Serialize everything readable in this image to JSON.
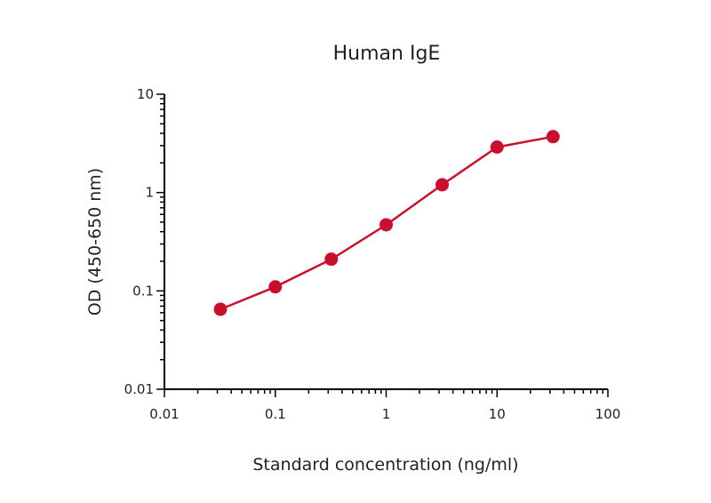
{
  "chart_data": {
    "type": "line",
    "title": "Human IgE",
    "xlabel": "Standard concentration (ng/ml)",
    "ylabel": "OD (450-650 nm)",
    "x_scale": "log",
    "y_scale": "log",
    "xlim": [
      0.01,
      100
    ],
    "ylim": [
      0.01,
      10
    ],
    "x_ticks": [
      0.01,
      0.1,
      1,
      10,
      100
    ],
    "x_tick_labels": [
      "0.01",
      "0.1",
      "1",
      "10",
      "100"
    ],
    "y_ticks": [
      0.01,
      0.1,
      1,
      10
    ],
    "y_tick_labels": [
      "0.01",
      "0.1",
      "1",
      "10"
    ],
    "grid": false,
    "series": [
      {
        "color": "#c8102e",
        "x": [
          0.032,
          0.1,
          0.32,
          1,
          3.2,
          10,
          32
        ],
        "y": [
          0.065,
          0.11,
          0.21,
          0.47,
          1.2,
          2.9,
          3.7
        ]
      }
    ]
  }
}
